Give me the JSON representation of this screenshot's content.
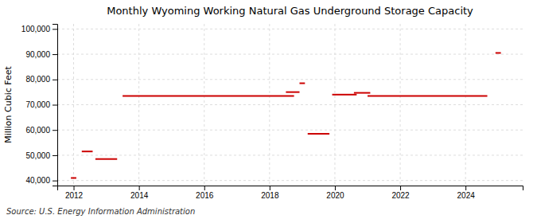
{
  "chart_data": {
    "type": "segment",
    "title": "Monthly Wyoming Working Natural Gas Underground Storage Capacity",
    "ylabel": "Million Cubic Feet",
    "source": "Source: U.S. Energy Information Administration",
    "color": "#cc0000",
    "grid": true,
    "x_start": [
      2011.917,
      2012.25,
      2012.667,
      2013.5,
      2018.5,
      2018.917,
      2019.167,
      2019.917,
      2020.583,
      2021.0,
      2024.917
    ],
    "x_end": [
      2012.083,
      2012.583,
      2013.333,
      2018.75,
      2018.917,
      2019.083,
      2019.833,
      2020.667,
      2021.083,
      2024.667,
      2025.083
    ],
    "values": [
      41000,
      51500,
      48500,
      73500,
      75000,
      78500,
      58500,
      74000,
      74700,
      73500,
      90500
    ],
    "xlim": [
      2011.5,
      2025.75
    ],
    "xticks": [
      2012,
      2014,
      2016,
      2018,
      2020,
      2022,
      2024
    ],
    "ylim": [
      38000,
      102000
    ],
    "yticks": [
      {
        "value": 40000,
        "label": "40,000"
      },
      {
        "value": 50000,
        "label": "50,000"
      },
      {
        "value": 60000,
        "label": "60,000"
      },
      {
        "value": 70000,
        "label": "70,000"
      },
      {
        "value": 80000,
        "label": "80,000"
      },
      {
        "value": 90000,
        "label": "90,000"
      },
      {
        "value": 100000,
        "label": "100,000"
      }
    ]
  }
}
